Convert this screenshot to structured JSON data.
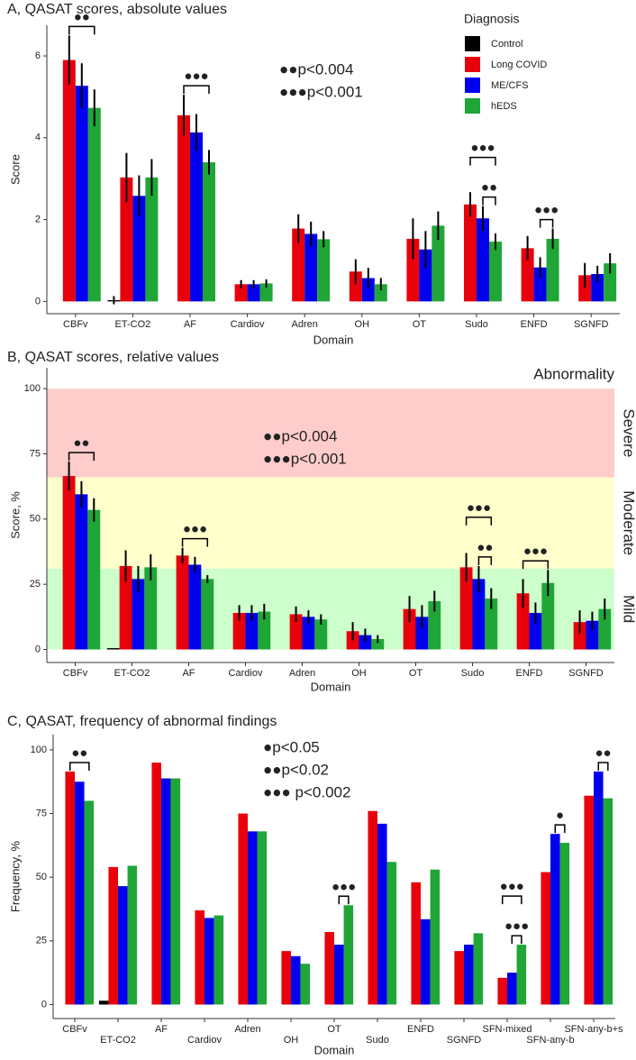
{
  "chart_data": [
    {
      "type": "bar",
      "title": "A, QASAT scores, absolute values",
      "x_label": "Domain",
      "y_label": "Score",
      "categories": [
        "CBFv",
        "ET-CO2",
        "AF",
        "Cardiov",
        "Adren",
        "OH",
        "OT",
        "Sudo",
        "ENFD",
        "SGNFD"
      ],
      "series": [
        {
          "name": "Control",
          "color": "#000000",
          "values": [
            0,
            0.03,
            0,
            0,
            0,
            0,
            0,
            0,
            0,
            0
          ],
          "errors": [
            null,
            0.1,
            null,
            null,
            null,
            null,
            null,
            null,
            null,
            null
          ]
        },
        {
          "name": "Long COVID",
          "color": "#e8000b",
          "values": [
            5.9,
            3.03,
            4.55,
            0.42,
            1.78,
            0.73,
            1.53,
            2.37,
            1.3,
            0.64
          ],
          "errors": [
            0.6,
            0.6,
            0.5,
            0.1,
            0.35,
            0.3,
            0.5,
            0.3,
            0.3,
            0.3
          ]
        },
        {
          "name": "ME/CFS",
          "color": "#0000ee",
          "values": [
            5.27,
            2.58,
            4.13,
            0.42,
            1.65,
            0.57,
            1.27,
            2.03,
            0.83,
            0.67
          ],
          "errors": [
            0.55,
            0.5,
            0.45,
            0.1,
            0.3,
            0.25,
            0.45,
            0.3,
            0.25,
            0.2
          ]
        },
        {
          "name": "hEDS",
          "color": "#1fa637",
          "values": [
            4.73,
            3.03,
            3.4,
            0.44,
            1.52,
            0.42,
            1.85,
            1.46,
            1.53,
            0.93
          ],
          "errors": [
            0.45,
            0.45,
            0.3,
            0.1,
            0.2,
            0.15,
            0.35,
            0.2,
            0.25,
            0.25
          ]
        }
      ],
      "ylim": [
        -0.3,
        6.75
      ],
      "yticks": [
        0,
        2,
        4,
        6
      ],
      "legend_title": "Diagnosis",
      "legend": "top-right",
      "significance_notes": [
        "●●p<0.004",
        "●●●p<0.001"
      ],
      "brackets": [
        {
          "label": "●●",
          "category": 0,
          "series": [
            1,
            3
          ]
        },
        {
          "label": "●●●",
          "category": 2,
          "series": [
            1,
            3
          ]
        },
        {
          "label": "●●",
          "category": 7,
          "series": [
            2,
            3
          ]
        },
        {
          "label": "●●●",
          "category": 7,
          "series": [
            1,
            3
          ]
        },
        {
          "label": "●●●",
          "category": 8,
          "series": [
            2,
            3
          ]
        }
      ]
    },
    {
      "type": "bar",
      "title": "B, QASAT scores, relative values",
      "x_label": "Domain",
      "y_label": "Score, %",
      "categories": [
        "CBFv",
        "ET-CO2",
        "AF",
        "Cardiov",
        "Adren",
        "OH",
        "OT",
        "Sudo",
        "ENFD",
        "SGNFD"
      ],
      "series": [
        {
          "color": "#000000",
          "values": [
            0,
            0.5,
            0,
            0,
            0,
            0,
            0,
            0,
            0,
            0
          ],
          "errors": [
            null,
            null,
            null,
            null,
            null,
            null,
            null,
            null,
            null,
            null
          ]
        },
        {
          "color": "#e8000b",
          "values": [
            66.5,
            32,
            36,
            14,
            13.5,
            7,
            15.5,
            31.5,
            21.5,
            10.5
          ],
          "errors": [
            5.5,
            6,
            3,
            3,
            3,
            3.5,
            5,
            5.5,
            5.5,
            4.5
          ]
        },
        {
          "color": "#0000ee",
          "values": [
            59.5,
            27,
            32.5,
            14,
            12.5,
            5.5,
            12.5,
            27,
            14,
            11
          ],
          "errors": [
            5,
            5,
            3,
            3,
            2.5,
            2.5,
            4.5,
            5,
            4,
            3.5
          ]
        },
        {
          "color": "#1fa637",
          "values": [
            53.5,
            31.5,
            27,
            14.5,
            11.5,
            4,
            18.5,
            19.5,
            25.5,
            15.5
          ],
          "errors": [
            4.5,
            5,
            1.5,
            3,
            2,
            1.5,
            4,
            4,
            5,
            4
          ]
        }
      ],
      "ylim": [
        -5,
        108
      ],
      "yticks": [
        0,
        25,
        50,
        75,
        100
      ],
      "bands_title": "Abnormality",
      "bands": [
        {
          "label": "Mild",
          "from": 0,
          "to": 31,
          "color": "#ccffcc"
        },
        {
          "label": "Moderate",
          "from": 31,
          "to": 66,
          "color": "#ffffcc"
        },
        {
          "label": "Severe",
          "from": 66,
          "to": 100,
          "color": "#ffcccc"
        }
      ],
      "significance_notes": [
        "●●p<0.004",
        "●●●p<0.001"
      ],
      "brackets": [
        {
          "label": "●●",
          "category": 0,
          "series": [
            1,
            3
          ]
        },
        {
          "label": "●●●",
          "category": 2,
          "series": [
            1,
            3
          ]
        },
        {
          "label": "●●",
          "category": 7,
          "series": [
            2,
            3
          ]
        },
        {
          "label": "●●●",
          "category": 7,
          "series": [
            1,
            3
          ]
        },
        {
          "label": "●●●",
          "category": 8,
          "series": [
            1,
            3
          ]
        }
      ]
    },
    {
      "type": "bar",
      "title": "C, QASAT, frequency of abnormal findings",
      "x_label": "Domain",
      "y_label": "Frequency, %",
      "categories": [
        "CBFv",
        "ET-CO2",
        "AF",
        "Cardiov",
        "Adren",
        "OH",
        "OT",
        "Sudo",
        "ENFD",
        "SGNFD",
        "SFN-mixed",
        "SFN-any-b",
        "SFN-any-b+s"
      ],
      "series": [
        {
          "color": "#000000",
          "values": [
            0,
            1.5,
            0,
            0,
            0,
            0,
            0,
            0,
            0,
            0,
            0,
            0,
            0
          ]
        },
        {
          "color": "#e8000b",
          "values": [
            91.5,
            54,
            95,
            37,
            75,
            21,
            28.5,
            76,
            48,
            21,
            10.5,
            52,
            82
          ]
        },
        {
          "color": "#0000ee",
          "values": [
            87.5,
            46.5,
            88.8,
            34,
            68,
            19,
            23.5,
            71,
            33.5,
            23.5,
            12.5,
            67,
            91.5
          ]
        },
        {
          "color": "#1fa637",
          "values": [
            80,
            54.5,
            88.8,
            35,
            68,
            16,
            39,
            56,
            53,
            28,
            23.5,
            63.5,
            81
          ]
        }
      ],
      "ylim": [
        -5.5,
        106
      ],
      "yticks": [
        0,
        25,
        50,
        75,
        100
      ],
      "significance_notes": [
        "●p<0.05",
        "●●p<0.02",
        "●●● p<0.002"
      ],
      "brackets": [
        {
          "label": "●●",
          "category": 0,
          "series": [
            1,
            3
          ]
        },
        {
          "label": "●●●",
          "category": 6,
          "series": [
            2,
            3
          ]
        },
        {
          "label": "●●●",
          "category": 10,
          "series": [
            2,
            3
          ]
        },
        {
          "label": "●●●",
          "category": 10,
          "series": [
            1,
            3
          ]
        },
        {
          "label": "●",
          "category": 11,
          "series": [
            2,
            3
          ]
        },
        {
          "label": "●●",
          "category": 12,
          "series": [
            2,
            3
          ]
        }
      ]
    }
  ]
}
